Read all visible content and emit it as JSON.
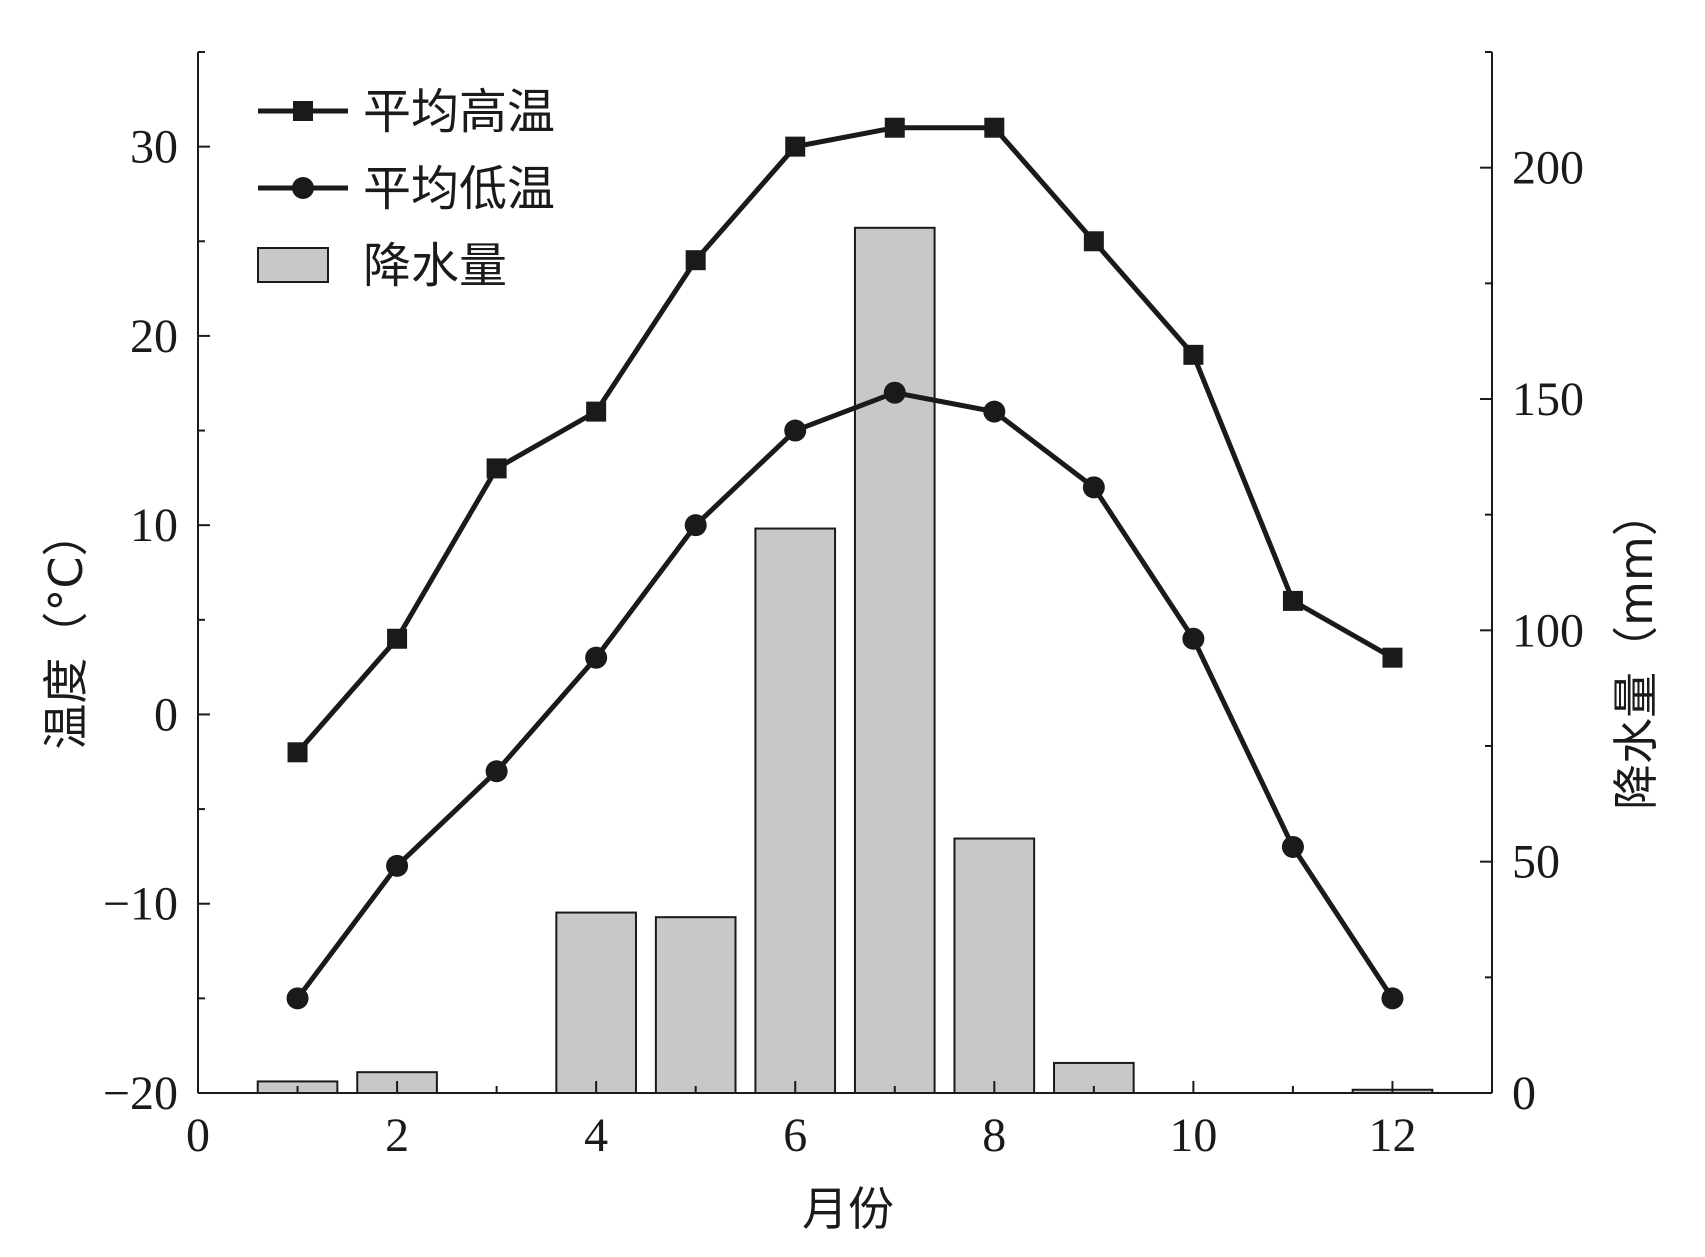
{
  "chart_data": {
    "type": "bar+line",
    "xlabel": "月份",
    "ylabel_left": "温度（°C）",
    "ylabel_right": "降水量（mm）",
    "xlim": [
      0,
      13
    ],
    "ylim_left": [
      -20,
      35
    ],
    "ylim_right": [
      0,
      225
    ],
    "x_ticks": [
      "0",
      "2",
      "4",
      "6",
      "8",
      "10",
      "12"
    ],
    "y_left_ticks": [
      "−20",
      "−10",
      "0",
      "10",
      "20",
      "30"
    ],
    "y_right_ticks": [
      "0",
      "50",
      "100",
      "150",
      "200"
    ],
    "months": [
      1,
      2,
      3,
      4,
      5,
      6,
      7,
      8,
      9,
      10,
      11,
      12
    ],
    "series": [
      {
        "name": "平均高温",
        "type": "line",
        "marker": "square",
        "axis": "left",
        "values": [
          -2,
          4,
          13,
          16,
          24,
          30,
          31,
          31,
          25,
          19,
          6,
          3
        ]
      },
      {
        "name": "平均低温",
        "type": "line",
        "marker": "circle",
        "axis": "left",
        "values": [
          -15,
          -8,
          -3,
          3,
          10,
          15,
          17,
          16,
          12,
          4,
          -7,
          -15
        ]
      },
      {
        "name": "降水量",
        "type": "bar",
        "axis": "right",
        "values": [
          2.5,
          4.5,
          0,
          39,
          38,
          122,
          187,
          55,
          6.5,
          0,
          0,
          0.7
        ]
      }
    ],
    "legend_position": "top-left",
    "colors": {
      "line": "#1a1a1a",
      "bar_fill": "#c8c8c8",
      "bar_stroke": "#1a1a1a"
    }
  }
}
